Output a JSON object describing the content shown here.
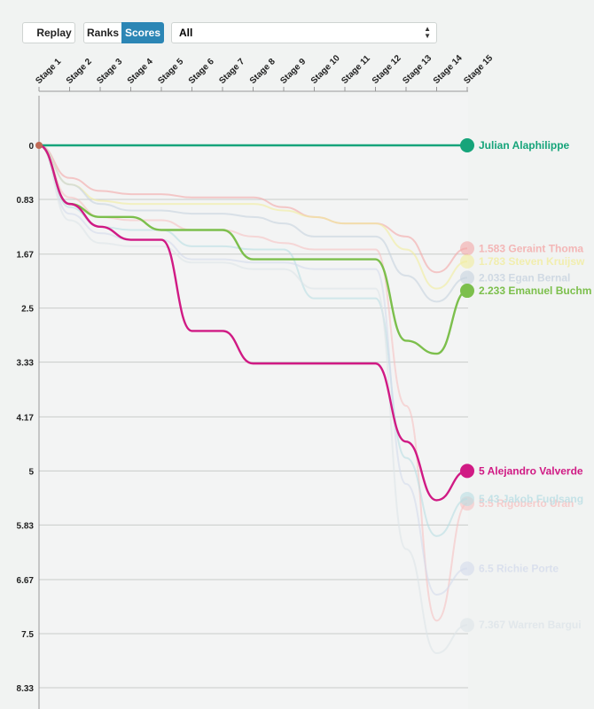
{
  "controls": {
    "replay_label": "Replay",
    "ranks_label": "Ranks",
    "scores_label": "Scores",
    "selected_filter": "All",
    "active_mode": "Scores"
  },
  "chart_data": {
    "type": "line",
    "title": "",
    "xlabel": "",
    "ylabel": "",
    "categories": [
      "Stage 1",
      "Stage 2",
      "Stage 3",
      "Stage 4",
      "Stage 5",
      "Stage 6",
      "Stage 7",
      "Stage 8",
      "Stage 9",
      "Stage 10",
      "Stage 11",
      "Stage 12",
      "Stage 13",
      "Stage 14",
      "Stage 15"
    ],
    "y_ticks": [
      "0",
      "0.83",
      "1.67",
      "2.5",
      "3.33",
      "4.17",
      "5",
      "5.83",
      "6.67",
      "7.5",
      "8.33"
    ],
    "ylim": [
      0,
      8.33
    ],
    "y_inverted": true,
    "grid": true,
    "series": [
      {
        "name": "Julian Alaphilippe",
        "label": "Julian Alaphilippe",
        "color": "#16a47a",
        "highlight": true,
        "values": [
          0,
          0,
          0,
          0,
          0,
          0,
          0,
          0,
          0,
          0,
          0,
          0,
          0,
          0,
          0
        ]
      },
      {
        "name": "Emanuel Buchmann",
        "label": "2.233 Emanuel Buchm",
        "color": "#7cbf4c",
        "highlight": true,
        "values": [
          0,
          0.9,
          1.1,
          1.1,
          1.3,
          1.3,
          1.3,
          1.75,
          1.75,
          1.75,
          1.75,
          1.75,
          3.0,
          3.2,
          2.233
        ]
      },
      {
        "name": "Alejandro Valverde",
        "label": "5 Alejandro Valverde",
        "color": "#d01a84",
        "highlight": true,
        "values": [
          0,
          0.9,
          1.25,
          1.45,
          1.45,
          2.85,
          2.85,
          3.35,
          3.35,
          3.35,
          3.35,
          3.35,
          4.55,
          5.45,
          5
        ]
      },
      {
        "name": "Geraint Thomas",
        "label": "1.583 Geraint Thoma",
        "color": "#f4a6a6",
        "highlight": false,
        "values": [
          0,
          0.5,
          0.7,
          0.75,
          0.75,
          0.8,
          0.8,
          0.8,
          0.95,
          1.1,
          1.2,
          1.2,
          1.4,
          1.95,
          1.583
        ]
      },
      {
        "name": "Steven Kruijswijk",
        "label": "1.783 Steven Kruijsw",
        "color": "#f1ec9c",
        "highlight": false,
        "values": [
          0,
          0.6,
          0.85,
          0.9,
          0.9,
          0.9,
          0.9,
          0.9,
          1.0,
          1.1,
          1.2,
          1.2,
          1.6,
          2.2,
          1.783
        ]
      },
      {
        "name": "Egan Bernal",
        "label": "2.033 Egan Bernal",
        "color": "#c7d2de",
        "highlight": false,
        "values": [
          0,
          0.6,
          0.9,
          1.0,
          1.0,
          1.05,
          1.05,
          1.1,
          1.2,
          1.4,
          1.4,
          1.4,
          2.0,
          2.4,
          2.033
        ]
      },
      {
        "name": "Rigoberto Uran",
        "label": "5.5 Rigoberto Uran",
        "color": "#f6c2c2",
        "highlight": false,
        "values": [
          0,
          0.8,
          1.1,
          1.15,
          1.15,
          1.3,
          1.3,
          1.4,
          1.5,
          1.6,
          1.6,
          1.6,
          4.0,
          7.3,
          5.5
        ]
      },
      {
        "name": "Jakob Fuglsang",
        "label": "5.43 Jakob Fuglsang",
        "color": "#b9dde3",
        "highlight": false,
        "values": [
          0,
          0.95,
          1.25,
          1.3,
          1.3,
          1.55,
          1.55,
          1.6,
          1.6,
          2.35,
          2.35,
          2.35,
          4.8,
          6.0,
          5.43
        ]
      },
      {
        "name": "Richie Porte",
        "label": "6.5 Richie Porte",
        "color": "#d4dbeb",
        "highlight": false,
        "values": [
          0,
          1.05,
          1.35,
          1.45,
          1.45,
          1.75,
          1.75,
          1.8,
          1.8,
          1.9,
          1.9,
          1.9,
          5.2,
          6.9,
          6.5
        ]
      },
      {
        "name": "Warren Barguil",
        "label": "7.367 Warren Bargui",
        "color": "#dde4e8",
        "highlight": false,
        "values": [
          0,
          1.15,
          1.5,
          1.55,
          1.55,
          1.8,
          1.8,
          1.9,
          1.9,
          2.2,
          2.2,
          2.2,
          6.2,
          7.8,
          7.367
        ]
      }
    ]
  }
}
